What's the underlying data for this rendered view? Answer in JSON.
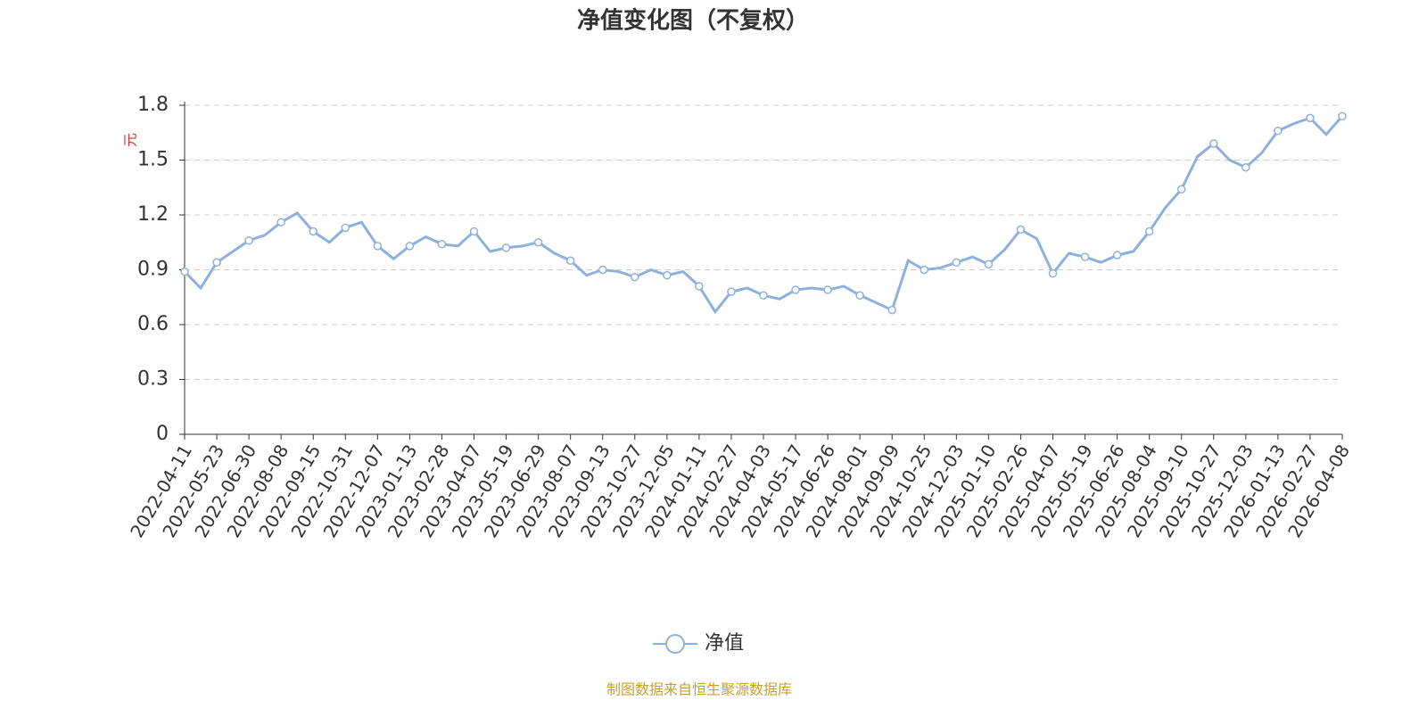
{
  "chart_data": {
    "type": "line",
    "title": "净值变化图（不复权）",
    "y_label": "元",
    "source": "制图数据来自恒生聚源数据库",
    "x": [
      "2022-04-11",
      null,
      "2022-05-23",
      null,
      "2022-06-30",
      null,
      "2022-08-08",
      null,
      "2022-09-15",
      null,
      "2022-10-31",
      null,
      "2022-12-07",
      null,
      "2023-01-13",
      null,
      "2023-02-28",
      null,
      "2023-04-07",
      null,
      "2023-05-19",
      null,
      "2023-06-29",
      null,
      "2023-08-07",
      null,
      "2023-09-13",
      null,
      "2023-10-27",
      null,
      "2023-12-05",
      null,
      "2024-01-11",
      null,
      "2024-02-27",
      null,
      "2024-04-03",
      null,
      "2024-05-17",
      null,
      "2024-06-26",
      null,
      "2024-08-01",
      null,
      "2024-09-09",
      null,
      "2024-10-25",
      null,
      "2024-12-03",
      null,
      "2025-01-10",
      null,
      "2025-02-26",
      null,
      "2025-04-07",
      null,
      "2025-05-19",
      null,
      "2025-06-26",
      null,
      "2025-08-04",
      null,
      "2025-09-10",
      null,
      "2025-10-27",
      null,
      "2025-12-03",
      null,
      "2026-01-13",
      null,
      "2026-02-27",
      null,
      "2026-04-08"
    ],
    "series": [
      {
        "name": "净值",
        "color": "#8eb0dc",
        "values": [
          0.89,
          0.8,
          0.94,
          1.0,
          1.06,
          1.09,
          1.16,
          1.21,
          1.11,
          1.05,
          1.13,
          1.16,
          1.03,
          0.96,
          1.03,
          1.08,
          1.04,
          1.03,
          1.11,
          1.0,
          1.02,
          1.03,
          1.05,
          0.99,
          0.95,
          0.87,
          0.9,
          0.89,
          0.86,
          0.9,
          0.87,
          0.89,
          0.81,
          0.67,
          0.78,
          0.8,
          0.76,
          0.74,
          0.79,
          0.8,
          0.79,
          0.81,
          0.76,
          0.72,
          0.68,
          0.95,
          0.9,
          0.91,
          0.94,
          0.97,
          0.93,
          1.01,
          1.12,
          1.07,
          0.88,
          0.99,
          0.97,
          0.94,
          0.98,
          1.0,
          1.11,
          1.24,
          1.34,
          1.52,
          1.59,
          1.5,
          1.46,
          1.54,
          1.66,
          1.7,
          1.73,
          1.64,
          1.74
        ]
      }
    ],
    "ylim": [
      0,
      1.8
    ],
    "yticks": [
      0,
      0.3,
      0.6,
      0.9,
      1.2,
      1.5,
      1.8
    ],
    "grid": true,
    "legend": "bottom"
  }
}
